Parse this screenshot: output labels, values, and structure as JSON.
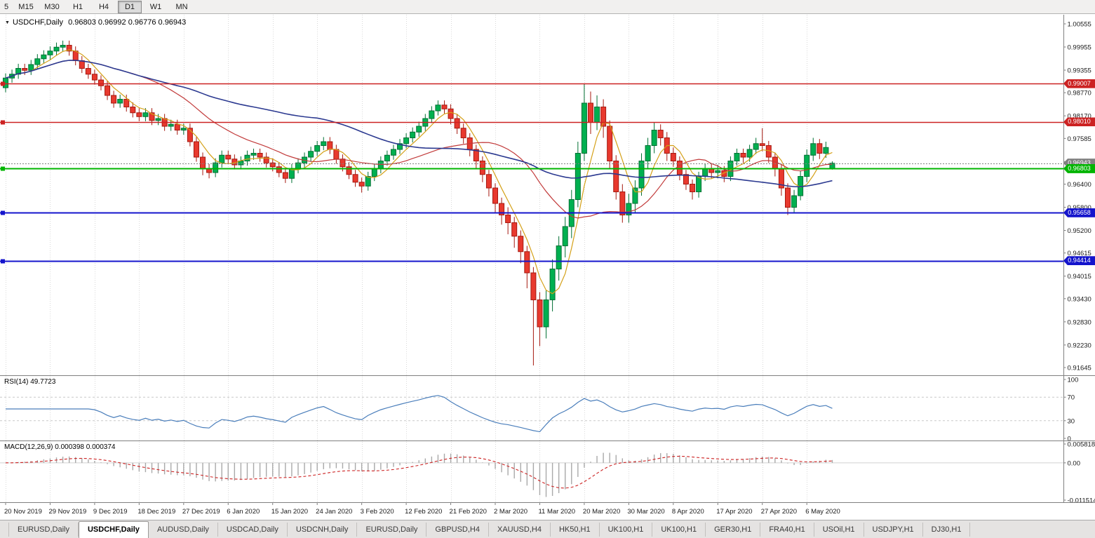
{
  "toolbar": {
    "timeframes": [
      {
        "label": "5",
        "active": false
      },
      {
        "label": "M15",
        "active": false
      },
      {
        "label": "M30",
        "active": false
      },
      {
        "label": "H1",
        "active": false
      },
      {
        "label": "H4",
        "active": false
      },
      {
        "label": "D1",
        "active": true
      },
      {
        "label": "W1",
        "active": false
      },
      {
        "label": "MN",
        "active": false
      }
    ]
  },
  "chart": {
    "symbol_label": "USDCHF,Daily",
    "ohlc_label": "0.96803 0.96992 0.96776 0.96943",
    "dropdown_icon": "▼"
  },
  "levels": [
    {
      "label": "0.99007",
      "price": 0.99007,
      "color": "#cc2222",
      "style": "solid",
      "width": 1.4,
      "marker": true,
      "type": "resistance-line"
    },
    {
      "label": "0.98010",
      "price": 0.9801,
      "color": "#cc2222",
      "style": "solid",
      "width": 1.4,
      "marker": true,
      "type": "resistance-line"
    },
    {
      "label": "0.96943",
      "price": 0.96943,
      "color": "#808080",
      "style": "dotted",
      "width": 1,
      "marker": false,
      "type": "current-bid-line"
    },
    {
      "label": "0.96803",
      "price": 0.96803,
      "color": "#00b400",
      "style": "solid",
      "width": 2,
      "marker": true,
      "type": "support-line"
    },
    {
      "label": "0.95658",
      "price": 0.95658,
      "color": "#1414cc",
      "style": "solid",
      "width": 2,
      "marker": true,
      "type": "support-line"
    },
    {
      "label": "0.94414",
      "price": 0.94414,
      "color": "#1414cc",
      "style": "solid",
      "width": 2,
      "marker": true,
      "type": "support-line"
    }
  ],
  "indicators": {
    "rsi": {
      "label": "RSI(14) 49.7723",
      "value": "49.7723",
      "axis_labels": [
        "100",
        "70",
        "30",
        "0"
      ],
      "line_color": "#4a7ebb"
    },
    "macd": {
      "label": "MACD(12,26,9) 0.000398 0.000374",
      "values": [
        "0.000398",
        "0.000374"
      ],
      "axis_labels": [
        "0.005818",
        "0.00",
        "-0.011514"
      ],
      "histogram_color": "#a9a9a9",
      "signal_color": "#cc2222"
    }
  },
  "tabs": [
    {
      "label": "EURUSD,Daily",
      "active": false
    },
    {
      "label": "USDCHF,Daily",
      "active": true
    },
    {
      "label": "AUDUSD,Daily",
      "active": false
    },
    {
      "label": "USDCAD,Daily",
      "active": false
    },
    {
      "label": "USDCNH,Daily",
      "active": false
    },
    {
      "label": "EURUSD,Daily",
      "active": false
    },
    {
      "label": "GBPUSD,H4",
      "active": false
    },
    {
      "label": "XAUUSD,H4",
      "active": false
    },
    {
      "label": "HK50,H1",
      "active": false
    },
    {
      "label": "UK100,H1",
      "active": false
    },
    {
      "label": "UK100,H1",
      "active": false
    },
    {
      "label": "GER30,H1",
      "active": false
    },
    {
      "label": "FRA40,H1",
      "active": false
    },
    {
      "label": "USOil,H1",
      "active": false
    },
    {
      "label": "USDJPY,H1",
      "active": false
    },
    {
      "label": "DJ30,H1",
      "active": false
    }
  ],
  "chart_data": {
    "type": "candlestick",
    "symbol": "USDCHF",
    "timeframe": "Daily",
    "title": "USDCHF,Daily",
    "last_ohlc": {
      "open": 0.96803,
      "high": 0.96992,
      "low": 0.96776,
      "close": 0.96943
    },
    "y_tick_labels": [
      "1.00555",
      "0.99955",
      "0.99355",
      "0.98770",
      "0.98170",
      "0.97585",
      "0.96985",
      "0.96400",
      "0.95800",
      "0.95200",
      "0.94615",
      "0.94015",
      "0.93430",
      "0.92830",
      "0.92230",
      "0.91645"
    ],
    "x_tick_labels": [
      "20 Nov 2019",
      "29 Nov 2019",
      "9 Dec 2019",
      "18 Dec 2019",
      "27 Dec 2019",
      "6 Jan 2020",
      "15 Jan 2020",
      "24 Jan 2020",
      "3 Feb 2020",
      "12 Feb 2020",
      "21 Feb 2020",
      "2 Mar 2020",
      "11 Mar 2020",
      "20 Mar 2020",
      "30 Mar 2020",
      "8 Apr 2020",
      "17 Apr 2020",
      "27 Apr 2020",
      "6 May 2020"
    ],
    "x_tick_indices": [
      0,
      7,
      14,
      21,
      28,
      35,
      42,
      49,
      56,
      63,
      70,
      77,
      84,
      91,
      98,
      105,
      112,
      119,
      126
    ],
    "moving_averages": [
      {
        "name": "fast",
        "period": 5,
        "color": "#d4a017"
      },
      {
        "name": "medium",
        "period": 20,
        "color": "#c23b3b"
      },
      {
        "name": "slow",
        "period": 50,
        "color": "#2b3990"
      }
    ],
    "colors": {
      "up": "#00b050",
      "up_border": "#007033",
      "down": "#e8392e",
      "down_border": "#a51910",
      "grid": "#d9d9d9",
      "axis_text": "#1a1a1a"
    },
    "ohlc": [
      [
        0.989,
        0.9927,
        0.9878,
        0.9915
      ],
      [
        0.9915,
        0.9937,
        0.9903,
        0.9925
      ],
      [
        0.9925,
        0.9952,
        0.9913,
        0.994
      ],
      [
        0.994,
        0.9952,
        0.9923,
        0.9935
      ],
      [
        0.9935,
        0.9962,
        0.9923,
        0.995
      ],
      [
        0.995,
        0.9977,
        0.9938,
        0.9965
      ],
      [
        0.9965,
        0.9987,
        0.9953,
        0.9975
      ],
      [
        0.9975,
        0.9997,
        0.9963,
        0.9985
      ],
      [
        0.9985,
        1.0007,
        0.9973,
        0.9995
      ],
      [
        0.9995,
        1.0012,
        0.9983,
        1.0
      ],
      [
        1.0,
        1.0012,
        0.9973,
        0.9985
      ],
      [
        0.9985,
        0.9997,
        0.9948,
        0.996
      ],
      [
        0.996,
        0.9972,
        0.9928,
        0.994
      ],
      [
        0.994,
        0.9952,
        0.9913,
        0.9925
      ],
      [
        0.9925,
        0.9937,
        0.9898,
        0.991
      ],
      [
        0.991,
        0.9922,
        0.9883,
        0.9895
      ],
      [
        0.9895,
        0.9907,
        0.9858,
        0.987
      ],
      [
        0.987,
        0.9882,
        0.9838,
        0.985
      ],
      [
        0.985,
        0.9872,
        0.9838,
        0.986
      ],
      [
        0.986,
        0.9872,
        0.9828,
        0.984
      ],
      [
        0.984,
        0.9852,
        0.9813,
        0.9825
      ],
      [
        0.9825,
        0.9837,
        0.9803,
        0.9815
      ],
      [
        0.9815,
        0.9837,
        0.9803,
        0.9825
      ],
      [
        0.9825,
        0.9837,
        0.9793,
        0.9805
      ],
      [
        0.9805,
        0.9822,
        0.9793,
        0.981
      ],
      [
        0.981,
        0.9822,
        0.9778,
        0.979
      ],
      [
        0.979,
        0.9807,
        0.9778,
        0.9795
      ],
      [
        0.9795,
        0.9807,
        0.9768,
        0.978
      ],
      [
        0.978,
        0.9797,
        0.9768,
        0.9785
      ],
      [
        0.9785,
        0.9797,
        0.9738,
        0.975
      ],
      [
        0.975,
        0.9762,
        0.9698,
        0.971
      ],
      [
        0.971,
        0.9722,
        0.9663,
        0.968
      ],
      [
        0.968,
        0.9692,
        0.9655,
        0.967
      ],
      [
        0.967,
        0.9707,
        0.9658,
        0.9695
      ],
      [
        0.9695,
        0.9727,
        0.9683,
        0.9715
      ],
      [
        0.9715,
        0.9727,
        0.9693,
        0.9705
      ],
      [
        0.9705,
        0.9717,
        0.9678,
        0.969
      ],
      [
        0.969,
        0.9712,
        0.9678,
        0.97
      ],
      [
        0.97,
        0.9727,
        0.9688,
        0.9715
      ],
      [
        0.9715,
        0.9732,
        0.9703,
        0.972
      ],
      [
        0.972,
        0.9732,
        0.9698,
        0.971
      ],
      [
        0.971,
        0.9722,
        0.9683,
        0.9695
      ],
      [
        0.9695,
        0.9707,
        0.9673,
        0.9685
      ],
      [
        0.9685,
        0.9697,
        0.9658,
        0.967
      ],
      [
        0.967,
        0.9682,
        0.9643,
        0.9655
      ],
      [
        0.9655,
        0.9692,
        0.9643,
        0.968
      ],
      [
        0.968,
        0.9707,
        0.9668,
        0.9695
      ],
      [
        0.9695,
        0.9722,
        0.9683,
        0.971
      ],
      [
        0.971,
        0.9737,
        0.9698,
        0.9725
      ],
      [
        0.9725,
        0.9752,
        0.9713,
        0.974
      ],
      [
        0.974,
        0.9762,
        0.9728,
        0.975
      ],
      [
        0.975,
        0.9762,
        0.9718,
        0.973
      ],
      [
        0.973,
        0.9742,
        0.9693,
        0.9705
      ],
      [
        0.9705,
        0.9717,
        0.9673,
        0.9685
      ],
      [
        0.9685,
        0.9697,
        0.9653,
        0.9665
      ],
      [
        0.9665,
        0.9677,
        0.9633,
        0.9645
      ],
      [
        0.9645,
        0.9657,
        0.9618,
        0.9635
      ],
      [
        0.9635,
        0.9672,
        0.9623,
        0.966
      ],
      [
        0.966,
        0.9692,
        0.9648,
        0.968
      ],
      [
        0.968,
        0.9712,
        0.9668,
        0.97
      ],
      [
        0.97,
        0.9727,
        0.9688,
        0.9715
      ],
      [
        0.9715,
        0.9742,
        0.9703,
        0.973
      ],
      [
        0.973,
        0.9757,
        0.9718,
        0.9745
      ],
      [
        0.9745,
        0.9772,
        0.9733,
        0.976
      ],
      [
        0.976,
        0.9787,
        0.9748,
        0.9775
      ],
      [
        0.9775,
        0.9802,
        0.9763,
        0.979
      ],
      [
        0.979,
        0.9822,
        0.9778,
        0.981
      ],
      [
        0.981,
        0.9842,
        0.9798,
        0.983
      ],
      [
        0.983,
        0.9857,
        0.9818,
        0.9845
      ],
      [
        0.9845,
        0.9857,
        0.9823,
        0.9835
      ],
      [
        0.9835,
        0.9847,
        0.9795,
        0.981
      ],
      [
        0.981,
        0.9822,
        0.977,
        0.9785
      ],
      [
        0.9785,
        0.9797,
        0.9745,
        0.976
      ],
      [
        0.976,
        0.9772,
        0.9712,
        0.973
      ],
      [
        0.973,
        0.9742,
        0.968,
        0.97
      ],
      [
        0.97,
        0.9712,
        0.9645,
        0.9665
      ],
      [
        0.9665,
        0.9677,
        0.9608,
        0.963
      ],
      [
        0.963,
        0.9642,
        0.9565,
        0.959
      ],
      [
        0.959,
        0.9605,
        0.9535,
        0.956
      ],
      [
        0.956,
        0.958,
        0.951,
        0.954
      ],
      [
        0.954,
        0.9555,
        0.9475,
        0.9505
      ],
      [
        0.9505,
        0.952,
        0.9435,
        0.9465
      ],
      [
        0.9465,
        0.948,
        0.937,
        0.941
      ],
      [
        0.941,
        0.9425,
        0.917,
        0.934
      ],
      [
        0.934,
        0.936,
        0.922,
        0.927
      ],
      [
        0.927,
        0.9365,
        0.924,
        0.934
      ],
      [
        0.934,
        0.9445,
        0.931,
        0.942
      ],
      [
        0.942,
        0.9505,
        0.939,
        0.948
      ],
      [
        0.948,
        0.9555,
        0.945,
        0.953
      ],
      [
        0.953,
        0.9625,
        0.95,
        0.96
      ],
      [
        0.96,
        0.975,
        0.958,
        0.972
      ],
      [
        0.972,
        0.99,
        0.97,
        0.985
      ],
      [
        0.985,
        0.988,
        0.977,
        0.98
      ],
      [
        0.98,
        0.987,
        0.978,
        0.984
      ],
      [
        0.984,
        0.986,
        0.976,
        0.979
      ],
      [
        0.979,
        0.9805,
        0.968,
        0.97
      ],
      [
        0.97,
        0.9715,
        0.96,
        0.962
      ],
      [
        0.962,
        0.964,
        0.954,
        0.956
      ],
      [
        0.956,
        0.9615,
        0.954,
        0.959
      ],
      [
        0.959,
        0.965,
        0.9565,
        0.963
      ],
      [
        0.963,
        0.972,
        0.961,
        0.97
      ],
      [
        0.97,
        0.976,
        0.968,
        0.974
      ],
      [
        0.974,
        0.98,
        0.972,
        0.978
      ],
      [
        0.978,
        0.9795,
        0.974,
        0.976
      ],
      [
        0.976,
        0.9775,
        0.97,
        0.972
      ],
      [
        0.972,
        0.9735,
        0.9685,
        0.97
      ],
      [
        0.97,
        0.9712,
        0.965,
        0.9665
      ],
      [
        0.9665,
        0.9677,
        0.9625,
        0.964
      ],
      [
        0.964,
        0.9652,
        0.96,
        0.962
      ],
      [
        0.962,
        0.9672,
        0.9605,
        0.966
      ],
      [
        0.966,
        0.9692,
        0.9648,
        0.968
      ],
      [
        0.968,
        0.9692,
        0.9655,
        0.967
      ],
      [
        0.967,
        0.969,
        0.9655,
        0.9675
      ],
      [
        0.9675,
        0.9687,
        0.9645,
        0.966
      ],
      [
        0.966,
        0.9712,
        0.9648,
        0.97
      ],
      [
        0.97,
        0.9732,
        0.9688,
        0.972
      ],
      [
        0.972,
        0.9732,
        0.9695,
        0.971
      ],
      [
        0.971,
        0.9742,
        0.9698,
        0.973
      ],
      [
        0.973,
        0.976,
        0.9718,
        0.9745
      ],
      [
        0.9745,
        0.9785,
        0.9725,
        0.974
      ],
      [
        0.974,
        0.9752,
        0.9695,
        0.971
      ],
      [
        0.971,
        0.9722,
        0.966,
        0.968
      ],
      [
        0.968,
        0.9692,
        0.961,
        0.963
      ],
      [
        0.963,
        0.9642,
        0.956,
        0.958
      ],
      [
        0.958,
        0.9625,
        0.9565,
        0.961
      ],
      [
        0.961,
        0.9675,
        0.9598,
        0.966
      ],
      [
        0.966,
        0.973,
        0.9645,
        0.9715
      ],
      [
        0.9715,
        0.976,
        0.97,
        0.9745
      ],
      [
        0.9745,
        0.9757,
        0.9705,
        0.972
      ],
      [
        0.972,
        0.975,
        0.9708,
        0.9735
      ],
      [
        0.96803,
        0.96992,
        0.96776,
        0.96943
      ]
    ]
  }
}
